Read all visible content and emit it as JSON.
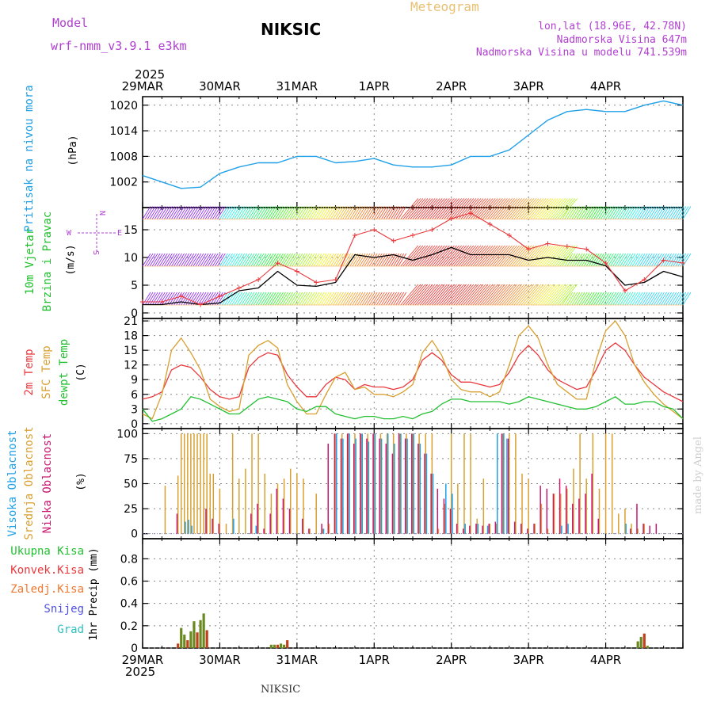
{
  "header": {
    "model_label": "Model",
    "model_name": "wrf-nmm_v3.9.1 e3km",
    "station": "NIKSIC",
    "chart_title": "Meteogram",
    "coords": "lon,lat (18.96E, 42.78N)",
    "elevation": "Nadmorska Visina 647m",
    "model_elevation": "Nadmorska Visina u modelu 741.539m",
    "footer_station": "NIKSIC",
    "watermark": "made by Angel"
  },
  "colors": {
    "pressure": "#1fa0e8",
    "wind_speed": "#000000",
    "gust": "#e8383c",
    "temp2m": "#e8383c",
    "sfc_temp": "#d9a030",
    "dewpt": "#22c030",
    "cloud_high": "#1fa0e8",
    "cloud_mid": "#d9a030",
    "cloud_low": "#c81870",
    "precip_total": "#22c030",
    "precip_conv": "#e8383c",
    "precip_frz": "#f07830",
    "precip_snow": "#5050e0",
    "precip_grad": "#30c0c0",
    "purple": "#b040d0",
    "grid": "#888888"
  },
  "chart_data": [
    {
      "type": "line",
      "name": "pressure",
      "panel_labels": [
        "Pritisak na nivou mora",
        "(hPa)"
      ],
      "x_labels": [
        "29MAR",
        "30MAR",
        "31MAR",
        "1APR",
        "2APR",
        "3APR",
        "4APR"
      ],
      "top_year": "2025",
      "bottom_year": "2025",
      "ylim": [
        996,
        1022
      ],
      "yticks": [
        1002,
        1008,
        1014,
        1020
      ],
      "ytick_labels": [
        "1002",
        "1008",
        "1014",
        "1020"
      ],
      "x_hours": [
        0,
        6,
        12,
        18,
        24,
        30,
        36,
        42,
        48,
        54,
        60,
        66,
        72,
        78,
        84,
        90,
        96,
        102,
        108,
        114,
        120,
        126,
        132,
        138,
        144,
        150,
        156,
        162,
        168
      ],
      "series": [
        {
          "name": "Pritisak na nivou mora",
          "values": [
            1003.5,
            1002.0,
            1000.5,
            1000.8,
            1004.0,
            1005.5,
            1006.5,
            1006.5,
            1008.0,
            1008.0,
            1006.5,
            1006.8,
            1007.5,
            1006.0,
            1005.5,
            1005.5,
            1006.0,
            1008.0,
            1008.0,
            1009.5,
            1013.0,
            1016.5,
            1018.5,
            1019.0,
            1018.5,
            1018.5,
            1020.0,
            1021.0,
            1020.0
          ]
        }
      ]
    },
    {
      "type": "line",
      "name": "wind",
      "panel_labels": [
        "10m Vjetar",
        "Brzina i Pravac",
        "(m/s)"
      ],
      "compass": {
        "n": "N",
        "s": "S",
        "e": "E",
        "w": "W"
      },
      "ylim": [
        -1,
        19
      ],
      "yticks": [
        0,
        5,
        10,
        15
      ],
      "ytick_labels": [
        "0",
        "5",
        "10",
        "15"
      ],
      "x_hours": [
        0,
        6,
        12,
        18,
        24,
        30,
        36,
        42,
        48,
        54,
        60,
        66,
        72,
        78,
        84,
        90,
        96,
        102,
        108,
        114,
        120,
        126,
        132,
        138,
        144,
        150,
        156,
        162,
        168
      ],
      "series": [
        {
          "name": "Brzina vjetra",
          "values": [
            1.5,
            1.5,
            2.0,
            1.5,
            1.8,
            4.0,
            4.5,
            7.5,
            5.0,
            4.8,
            5.5,
            10.5,
            10.0,
            10.5,
            9.5,
            10.5,
            11.8,
            10.5,
            10.5,
            10.5,
            9.5,
            10.0,
            9.5,
            9.5,
            8.5,
            5.0,
            5.5,
            7.5,
            6.5
          ]
        },
        {
          "name": "Udari vjetra",
          "values": [
            2.0,
            2.0,
            3.0,
            1.5,
            3.0,
            4.5,
            6.0,
            9.0,
            7.5,
            5.5,
            6.0,
            14.0,
            15.0,
            13.0,
            14.0,
            15.0,
            17.0,
            18.0,
            16.0,
            14.0,
            11.5,
            12.5,
            12.0,
            11.5,
            9.0,
            4.0,
            6.0,
            9.5,
            9.0
          ]
        }
      ],
      "barb_band_values": [
        17.5,
        9,
        2
      ]
    },
    {
      "type": "line",
      "name": "temperature",
      "panel_labels": [
        "2m Temp",
        "SFC Temp",
        "dewpt Temp",
        "(C)"
      ],
      "ylim": [
        -1,
        21.5
      ],
      "yticks": [
        0,
        3,
        6,
        9,
        12,
        15,
        18,
        21
      ],
      "ytick_labels": [
        "0",
        "3",
        "6",
        "9",
        "12",
        "15",
        "18",
        "21"
      ],
      "x_hours": [
        0,
        3,
        6,
        9,
        12,
        15,
        18,
        21,
        24,
        27,
        30,
        33,
        36,
        39,
        42,
        45,
        48,
        51,
        54,
        57,
        60,
        63,
        66,
        69,
        72,
        75,
        78,
        81,
        84,
        87,
        90,
        93,
        96,
        99,
        102,
        105,
        108,
        111,
        114,
        117,
        120,
        123,
        126,
        129,
        132,
        135,
        138,
        141,
        144,
        147,
        150,
        153,
        156,
        159,
        162,
        165,
        168
      ],
      "series": [
        {
          "name": "2m Temp",
          "values": [
            5.0,
            5.5,
            6.5,
            11.0,
            12.0,
            11.5,
            9.5,
            7.0,
            5.5,
            5.0,
            5.5,
            11.5,
            13.5,
            14.5,
            14.0,
            10.0,
            7.5,
            5.5,
            5.5,
            8.0,
            9.5,
            9.0,
            7.0,
            8.0,
            7.5,
            7.5,
            7.0,
            7.5,
            9.0,
            13.0,
            14.5,
            13.0,
            10.0,
            8.5,
            8.5,
            8.0,
            7.5,
            8.0,
            10.5,
            14.0,
            16.0,
            14.0,
            11.0,
            9.0,
            8.0,
            7.0,
            7.5,
            11.0,
            15.0,
            16.5,
            15.0,
            12.0,
            9.5,
            8.0,
            6.5,
            5.5,
            4.5
          ]
        },
        {
          "name": "SFC Temp",
          "values": [
            2.0,
            1.0,
            6.0,
            15.0,
            17.5,
            14.5,
            11.0,
            5.0,
            3.5,
            2.5,
            3.0,
            14.0,
            16.0,
            17.0,
            15.5,
            8.0,
            4.5,
            2.0,
            2.0,
            6.0,
            9.5,
            10.5,
            7.0,
            7.5,
            6.0,
            6.0,
            5.5,
            6.5,
            8.0,
            14.5,
            17.0,
            14.0,
            9.0,
            7.0,
            6.5,
            6.5,
            5.5,
            6.5,
            12.0,
            18.0,
            20.0,
            17.5,
            12.0,
            8.0,
            6.5,
            5.0,
            5.0,
            13.0,
            19.0,
            21.0,
            18.0,
            12.0,
            8.5,
            6.0,
            4.0,
            2.5,
            1.0
          ]
        },
        {
          "name": "dewpt Temp",
          "values": [
            3.0,
            0.5,
            1.0,
            2.0,
            3.0,
            5.5,
            5.0,
            4.0,
            3.0,
            2.0,
            2.0,
            3.5,
            5.0,
            5.5,
            5.0,
            4.5,
            3.0,
            2.5,
            3.5,
            3.5,
            2.0,
            1.5,
            1.0,
            1.5,
            1.5,
            1.0,
            1.0,
            1.5,
            1.0,
            2.0,
            2.5,
            4.0,
            5.0,
            5.0,
            4.5,
            4.5,
            4.5,
            4.5,
            4.0,
            4.5,
            5.5,
            5.0,
            4.5,
            4.0,
            3.5,
            3.0,
            3.0,
            3.5,
            4.5,
            5.5,
            4.0,
            4.0,
            4.5,
            4.5,
            3.5,
            3.0,
            1.0
          ]
        }
      ]
    },
    {
      "type": "bar",
      "name": "clouds",
      "panel_labels": [
        "Visoka Oblacnost",
        "Srednja Oblacnost",
        "Niska Oblacnost",
        "(%)"
      ],
      "ylim": [
        -5,
        105
      ],
      "yticks": [
        0,
        25,
        50,
        75,
        100
      ],
      "ytick_labels": [
        "0",
        "25",
        "50",
        "75",
        "100"
      ],
      "series": [
        {
          "name": "Visoka Oblacnost",
          "x_hours": [
            13,
            14,
            15,
            28,
            35,
            56,
            60,
            62,
            64,
            66,
            68,
            70,
            72,
            74,
            76,
            78,
            80,
            82,
            84,
            86,
            88,
            90,
            94,
            96,
            100,
            104,
            107,
            110,
            112,
            113,
            130,
            132,
            150
          ],
          "values": [
            12,
            14,
            8,
            15,
            8,
            5,
            100,
            95,
            100,
            95,
            100,
            92,
            100,
            95,
            100,
            90,
            100,
            95,
            100,
            90,
            80,
            60,
            50,
            40,
            10,
            10,
            8,
            100,
            100,
            95,
            8,
            10,
            10
          ]
        },
        {
          "name": "Srednja Oblacnost",
          "x_hours": [
            7,
            11,
            12,
            13,
            14,
            15,
            16,
            17,
            18,
            19,
            20,
            21,
            22,
            24,
            26,
            28,
            30,
            32,
            34,
            36,
            38,
            40,
            42,
            44,
            46,
            48,
            50,
            52,
            54,
            56,
            58,
            60,
            62,
            64,
            66,
            68,
            70,
            72,
            74,
            76,
            78,
            80,
            82,
            84,
            86,
            88,
            90,
            92,
            94,
            96,
            98,
            100,
            102,
            104,
            106,
            108,
            110,
            112,
            114,
            116,
            118,
            120,
            122,
            124,
            126,
            128,
            130,
            132,
            134,
            136,
            138,
            140,
            142,
            144,
            146,
            148,
            150,
            152,
            154,
            156
          ],
          "values": [
            48,
            58,
            100,
            100,
            100,
            100,
            100,
            100,
            100,
            100,
            100,
            60,
            60,
            45,
            10,
            100,
            55,
            65,
            100,
            100,
            60,
            40,
            50,
            55,
            65,
            60,
            55,
            5,
            40,
            5,
            10,
            100,
            100,
            100,
            100,
            100,
            100,
            100,
            100,
            100,
            100,
            100,
            100,
            100,
            100,
            100,
            100,
            5,
            30,
            100,
            50,
            100,
            100,
            15,
            55,
            10,
            10,
            100,
            100,
            100,
            60,
            55,
            10,
            30,
            5,
            40,
            40,
            45,
            65,
            100,
            55,
            100,
            45,
            100,
            100,
            20,
            25,
            10,
            5,
            10
          ]
        },
        {
          "name": "Niska Oblacnost",
          "x_hours": [
            11,
            20,
            22,
            24,
            34,
            36,
            38,
            40,
            42,
            44,
            46,
            50,
            52,
            56,
            58,
            60,
            62,
            64,
            66,
            68,
            70,
            72,
            74,
            76,
            78,
            80,
            82,
            84,
            86,
            88,
            90,
            92,
            94,
            96,
            98,
            100,
            102,
            104,
            106,
            108,
            110,
            112,
            114,
            116,
            118,
            120,
            122,
            124,
            126,
            128,
            130,
            132,
            134,
            136,
            138,
            140,
            142,
            152,
            154,
            156,
            158,
            160
          ],
          "values": [
            20,
            25,
            15,
            10,
            20,
            30,
            5,
            20,
            45,
            35,
            25,
            15,
            5,
            10,
            90,
            100,
            95,
            100,
            90,
            100,
            95,
            100,
            95,
            90,
            80,
            100,
            95,
            100,
            90,
            80,
            60,
            45,
            35,
            25,
            10,
            5,
            8,
            10,
            8,
            10,
            12,
            100,
            95,
            12,
            10,
            5,
            10,
            48,
            45,
            40,
            55,
            48,
            30,
            35,
            40,
            60,
            15,
            5,
            30,
            10,
            8,
            10
          ]
        }
      ]
    },
    {
      "type": "bar",
      "name": "precipitation",
      "panel_labels": [
        "1hr Precip (mm)"
      ],
      "legend": [
        "Ukupna Kisa",
        "Konvek.Kisa",
        "Zaledj.Kisa",
        "Snijeg",
        "Grad"
      ],
      "ylim": [
        0,
        0.98
      ],
      "yticks": [
        0,
        0.2,
        0.4,
        0.6,
        0.8
      ],
      "ytick_labels": [
        "0",
        "0.2",
        "0.4",
        "0.6",
        "0.8"
      ],
      "series": [
        {
          "name": "Ukupna Kisa",
          "x_hours": [
            11,
            12,
            13,
            14,
            15,
            16,
            17,
            18,
            19,
            20,
            40,
            41,
            42,
            43,
            44,
            45,
            154,
            155,
            156,
            157
          ],
          "values": [
            0.04,
            0.18,
            0.12,
            0.07,
            0.15,
            0.24,
            0.14,
            0.25,
            0.31,
            0.16,
            0.03,
            0.03,
            0.03,
            0.04,
            0.03,
            0.07,
            0.06,
            0.1,
            0.13,
            0.02
          ]
        }
      ]
    }
  ]
}
